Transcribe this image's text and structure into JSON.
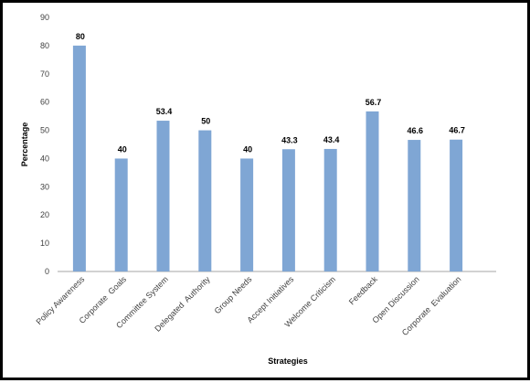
{
  "chart_data": {
    "type": "bar",
    "categories": [
      "Policy Awareness",
      "Corporate  Goals",
      "Committee System",
      "Delegated  Authority",
      "Group Needs",
      "Accept Initiatives",
      "Welcome Criticism",
      "Feedback",
      "Open Discussion",
      "Corporate  Evaluation"
    ],
    "values": [
      80,
      40,
      53.4,
      50,
      40,
      43.3,
      43.4,
      56.7,
      46.6,
      46.7
    ],
    "data_labels": [
      "80",
      "40",
      "53.4",
      "50",
      "40",
      "43.3",
      "43.4",
      "56.7",
      "46.6",
      "46.7"
    ],
    "title": "",
    "xlabel": "Strategies",
    "ylabel": "Percentage",
    "ylim": [
      0,
      90
    ],
    "yticks": [
      0,
      10,
      20,
      30,
      40,
      50,
      60,
      70,
      80,
      90
    ],
    "grid": false,
    "legend": "none",
    "bar_color": "#7fa6d4"
  }
}
